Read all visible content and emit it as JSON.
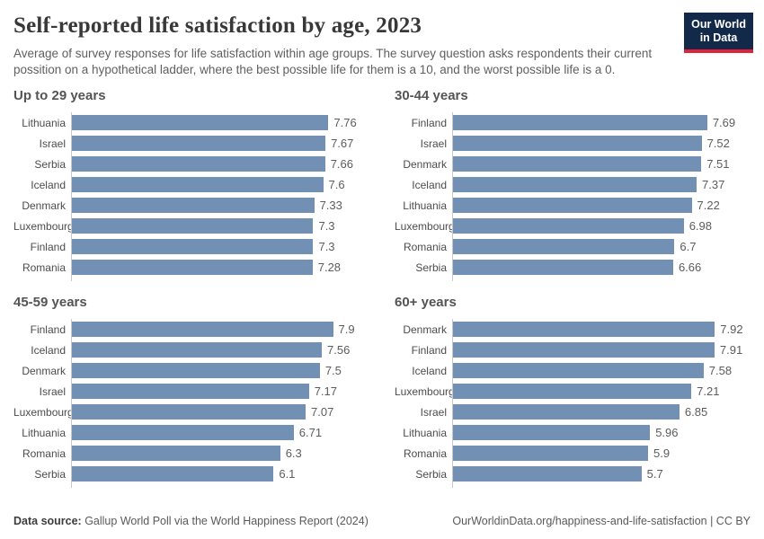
{
  "header": {
    "title": "Self-reported life satisfaction by age, 2023",
    "subtitle": "Average of survey responses for life satisfaction within age groups. The survey question asks respondents their current possition on a hypothetical ladder, where the best possible life for them is a 10, and the worst possible life is a 0.",
    "logo_line1": "Our World",
    "logo_line2": "in Data"
  },
  "footer": {
    "source_label": "Data source:",
    "source_text": " Gallup World Poll via the World Happiness Report (2024)",
    "credit": "OurWorldinData.org/happiness-and-life-satisfaction | CC BY"
  },
  "colors": {
    "bar": "#7290b4",
    "axis": "#c8c8c8",
    "logo_navy": "#12294a",
    "logo_red": "#e0233c"
  },
  "chart_data": [
    {
      "type": "bar",
      "orientation": "horizontal",
      "title": "Up to 29 years",
      "categories": [
        "Lithuania",
        "Israel",
        "Serbia",
        "Iceland",
        "Denmark",
        "Luxembourg",
        "Finland",
        "Romania"
      ],
      "values": [
        7.76,
        7.67,
        7.66,
        7.6,
        7.33,
        7.3,
        7.3,
        7.28
      ],
      "xlim": [
        0,
        9
      ],
      "grid": false,
      "value_labels": true
    },
    {
      "type": "bar",
      "orientation": "horizontal",
      "title": "30-44 years",
      "categories": [
        "Finland",
        "Israel",
        "Denmark",
        "Iceland",
        "Lithuania",
        "Luxembourg",
        "Romania",
        "Serbia"
      ],
      "values": [
        7.69,
        7.52,
        7.51,
        7.37,
        7.22,
        6.98,
        6.7,
        6.66
      ],
      "xlim": [
        0,
        9
      ],
      "grid": false,
      "value_labels": true
    },
    {
      "type": "bar",
      "orientation": "horizontal",
      "title": "45-59 years",
      "categories": [
        "Finland",
        "Iceland",
        "Denmark",
        "Israel",
        "Luxembourg",
        "Lithuania",
        "Romania",
        "Serbia"
      ],
      "values": [
        7.9,
        7.56,
        7.5,
        7.17,
        7.07,
        6.71,
        6.3,
        6.1
      ],
      "xlim": [
        0,
        9
      ],
      "grid": false,
      "value_labels": true
    },
    {
      "type": "bar",
      "orientation": "horizontal",
      "title": "60+ years",
      "categories": [
        "Denmark",
        "Finland",
        "Iceland",
        "Luxembourg",
        "Israel",
        "Lithuania",
        "Romania",
        "Serbia"
      ],
      "values": [
        7.92,
        7.91,
        7.58,
        7.21,
        6.85,
        5.96,
        5.9,
        5.7
      ],
      "xlim": [
        0,
        9
      ],
      "grid": false,
      "value_labels": true
    }
  ]
}
